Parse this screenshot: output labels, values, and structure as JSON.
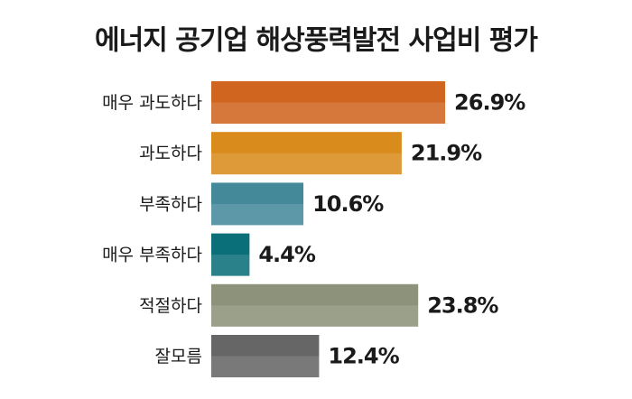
{
  "chart_data": {
    "type": "bar",
    "orientation": "horizontal",
    "title": "에너지 공기업 해상풍력발전 사업비 평가",
    "categories": [
      "매우 과도하다",
      "과도하다",
      "부족하다",
      "매우 부족하다",
      "적절하다",
      "잘모름"
    ],
    "values": [
      26.9,
      21.9,
      10.6,
      4.4,
      23.8,
      12.4
    ],
    "value_labels": [
      "26.9%",
      "21.9%",
      "10.6%",
      "4.4%",
      "23.8%",
      "12.4%"
    ],
    "colors": [
      "#d0651f",
      "#d98b1c",
      "#44899a",
      "#0b6f79",
      "#8d927a",
      "#666666"
    ]
  }
}
